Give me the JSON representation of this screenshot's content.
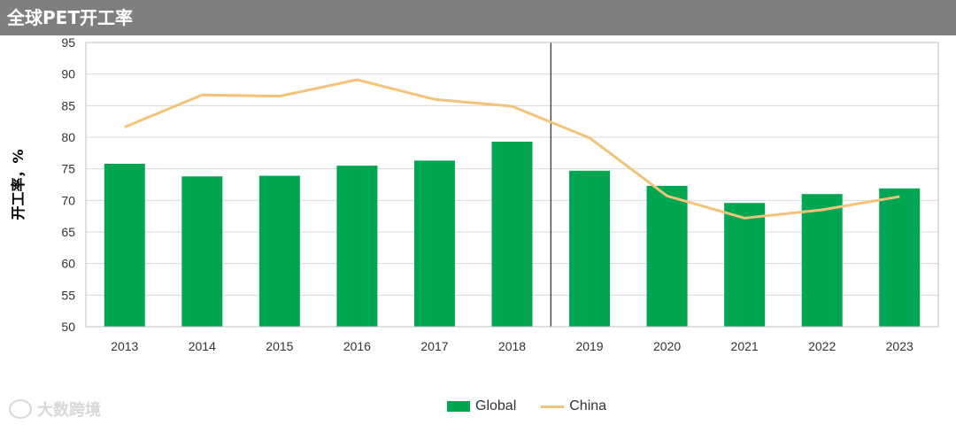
{
  "header": {
    "title": "全球PET开工率"
  },
  "watermark": {
    "text": "大数跨境"
  },
  "colors": {
    "header_bg": "#7f7f7f",
    "global": "#00a651",
    "china": "#f5c27a"
  },
  "chart_data": {
    "type": "bar",
    "categories": [
      "2013",
      "2014",
      "2015",
      "2016",
      "2017",
      "2018",
      "2019",
      "2020",
      "2021",
      "2022",
      "2023"
    ],
    "series": [
      {
        "name": "Global",
        "type": "bar",
        "values": [
          75.8,
          73.8,
          73.9,
          75.5,
          76.3,
          79.3,
          74.7,
          72.3,
          69.6,
          71.0,
          71.9
        ]
      },
      {
        "name": "China",
        "type": "line",
        "values": [
          81.6,
          86.7,
          86.5,
          89.1,
          86.0,
          84.9,
          79.9,
          70.7,
          67.2,
          68.5,
          70.6
        ]
      }
    ],
    "ylabel": "开工率，%",
    "xlabel": "",
    "ylim": [
      50,
      95
    ],
    "yticks": [
      50,
      55,
      60,
      65,
      70,
      75,
      80,
      85,
      90,
      95
    ],
    "grid": true,
    "divider_between": [
      "2018",
      "2019"
    ],
    "legend": {
      "placement": "bottom",
      "entries": [
        "Global",
        "China"
      ]
    }
  }
}
